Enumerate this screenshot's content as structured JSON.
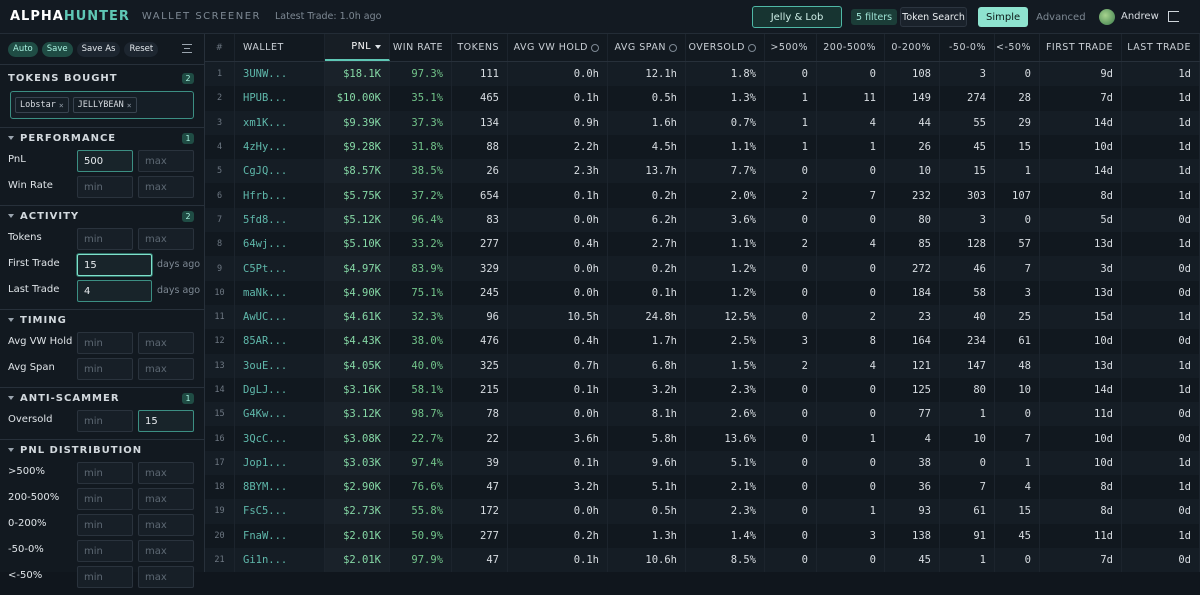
{
  "header": {
    "brand": [
      "ALPHA",
      "HUNTER"
    ],
    "subtitle": "WALLET SCREENER",
    "latest_trade": "Latest Trade: 1.0h ago",
    "preset": "Jelly & Lob",
    "filters": "5 filters",
    "token_search": "Token Search",
    "modes": [
      {
        "label": "Simple",
        "active": true
      },
      {
        "label": "Advanced"
      }
    ],
    "user": "Andrew"
  },
  "sidebar": {
    "actions": [
      {
        "label": "Auto",
        "active": true
      },
      {
        "label": "Save",
        "active": true
      },
      {
        "label": "Save As"
      },
      {
        "label": "Reset"
      }
    ],
    "sections": [
      {
        "title": "TOKENS BOUGHT",
        "count": "2",
        "chips": [
          "Lobstar",
          "JELLYBEAN"
        ]
      },
      {
        "title": "PERFORMANCE",
        "count": "1",
        "fields": [
          {
            "label": "PnL",
            "inputs": [
              {
                "text": "500",
                "filled": true
              },
              {
                "text": "max"
              }
            ]
          },
          {
            "label": "Win Rate",
            "inputs": [
              {
                "text": "min"
              },
              {
                "text": "max"
              }
            ]
          }
        ]
      },
      {
        "title": "ACTIVITY",
        "count": "2",
        "fields": [
          {
            "label": "Tokens",
            "inputs": [
              {
                "text": "min"
              },
              {
                "text": "max"
              }
            ]
          },
          {
            "label": "First Trade",
            "inputs": [
              {
                "text": "15",
                "filled": true,
                "focused": true
              }
            ],
            "suffix": "days ago"
          },
          {
            "label": "Last Trade",
            "inputs": [
              {
                "text": "4",
                "filled": true
              }
            ],
            "suffix": "days ago"
          }
        ]
      },
      {
        "title": "TIMING",
        "fields": [
          {
            "label": "Avg VW Hold",
            "inputs": [
              {
                "text": "min"
              },
              {
                "text": "max"
              }
            ]
          },
          {
            "label": "Avg Span",
            "inputs": [
              {
                "text": "min"
              },
              {
                "text": "max"
              }
            ]
          }
        ]
      },
      {
        "title": "ANTI-SCAMMER",
        "count": "1",
        "fields": [
          {
            "label": "Oversold",
            "inputs": [
              {
                "text": "min"
              },
              {
                "text": "15",
                "filled": true
              }
            ]
          }
        ]
      },
      {
        "title": "PNL DISTRIBUTION",
        "fields": [
          {
            "label": ">500%",
            "inputs": [
              {
                "text": "min"
              },
              {
                "text": "max"
              }
            ]
          },
          {
            "label": "200-500%",
            "inputs": [
              {
                "text": "min"
              },
              {
                "text": "max"
              }
            ]
          },
          {
            "label": "0-200%",
            "inputs": [
              {
                "text": "min"
              },
              {
                "text": "max"
              }
            ]
          },
          {
            "label": "-50-0%",
            "inputs": [
              {
                "text": "min"
              },
              {
                "text": "max"
              }
            ]
          },
          {
            "label": "<-50%",
            "inputs": [
              {
                "text": "min"
              },
              {
                "text": "max"
              }
            ]
          }
        ]
      }
    ]
  },
  "table": {
    "columns": [
      {
        "label": "#"
      },
      {
        "label": "WALLET",
        "color": "#5fb8ab"
      },
      {
        "label": "PNL",
        "sorted": "desc",
        "color": "#86d9a6"
      },
      {
        "label": "WIN RATE",
        "color": "#72c48a"
      },
      {
        "label": "TOKENS"
      },
      {
        "label": "AVG VW HOLD",
        "info": true
      },
      {
        "label": "AVG SPAN",
        "info": true
      },
      {
        "label": "OVERSOLD",
        "info": true
      },
      {
        "label": ">500%"
      },
      {
        "label": "200-500%"
      },
      {
        "label": "0-200%"
      },
      {
        "label": "-50-0%"
      },
      {
        "label": "<-50%"
      },
      {
        "label": "FIRST TRADE"
      },
      {
        "label": "LAST TRADE"
      }
    ],
    "rows": [
      [
        "1",
        "3UNW...",
        "$18.1K",
        "97.3%",
        "111",
        "0.0h",
        "12.1h",
        "1.8%",
        "0",
        "0",
        "108",
        "3",
        "0",
        "9d",
        "1d"
      ],
      [
        "2",
        "HPUB...",
        "$10.00K",
        "35.1%",
        "465",
        "0.1h",
        "0.5h",
        "1.3%",
        "1",
        "11",
        "149",
        "274",
        "28",
        "7d",
        "1d"
      ],
      [
        "3",
        "xm1K...",
        "$9.39K",
        "37.3%",
        "134",
        "0.9h",
        "1.6h",
        "0.7%",
        "1",
        "4",
        "44",
        "55",
        "29",
        "14d",
        "1d"
      ],
      [
        "4",
        "4zHy...",
        "$9.28K",
        "31.8%",
        "88",
        "2.2h",
        "4.5h",
        "1.1%",
        "1",
        "1",
        "26",
        "45",
        "15",
        "10d",
        "1d"
      ],
      [
        "5",
        "CgJQ...",
        "$8.57K",
        "38.5%",
        "26",
        "2.3h",
        "13.7h",
        "7.7%",
        "0",
        "0",
        "10",
        "15",
        "1",
        "14d",
        "1d"
      ],
      [
        "6",
        "Hfrb...",
        "$5.75K",
        "37.2%",
        "654",
        "0.1h",
        "0.2h",
        "2.0%",
        "2",
        "7",
        "232",
        "303",
        "107",
        "8d",
        "1d"
      ],
      [
        "7",
        "5fd8...",
        "$5.12K",
        "96.4%",
        "83",
        "0.0h",
        "6.2h",
        "3.6%",
        "0",
        "0",
        "80",
        "3",
        "0",
        "5d",
        "0d"
      ],
      [
        "8",
        "64wj...",
        "$5.10K",
        "33.2%",
        "277",
        "0.4h",
        "2.7h",
        "1.1%",
        "2",
        "4",
        "85",
        "128",
        "57",
        "13d",
        "1d"
      ],
      [
        "9",
        "C5Pt...",
        "$4.97K",
        "83.9%",
        "329",
        "0.0h",
        "0.2h",
        "1.2%",
        "0",
        "0",
        "272",
        "46",
        "7",
        "3d",
        "0d"
      ],
      [
        "10",
        "maNk...",
        "$4.90K",
        "75.1%",
        "245",
        "0.0h",
        "0.1h",
        "1.2%",
        "0",
        "0",
        "184",
        "58",
        "3",
        "13d",
        "0d"
      ],
      [
        "11",
        "AwUC...",
        "$4.61K",
        "32.3%",
        "96",
        "10.5h",
        "24.8h",
        "12.5%",
        "0",
        "2",
        "23",
        "40",
        "25",
        "15d",
        "1d"
      ],
      [
        "12",
        "85AR...",
        "$4.43K",
        "38.0%",
        "476",
        "0.4h",
        "1.7h",
        "2.5%",
        "3",
        "8",
        "164",
        "234",
        "61",
        "10d",
        "0d"
      ],
      [
        "13",
        "3ouE...",
        "$4.05K",
        "40.0%",
        "325",
        "0.7h",
        "6.8h",
        "1.5%",
        "2",
        "4",
        "121",
        "147",
        "48",
        "13d",
        "1d"
      ],
      [
        "14",
        "DgLJ...",
        "$3.16K",
        "58.1%",
        "215",
        "0.1h",
        "3.2h",
        "2.3%",
        "0",
        "0",
        "125",
        "80",
        "10",
        "14d",
        "1d"
      ],
      [
        "15",
        "G4Kw...",
        "$3.12K",
        "98.7%",
        "78",
        "0.0h",
        "8.1h",
        "2.6%",
        "0",
        "0",
        "77",
        "1",
        "0",
        "11d",
        "0d"
      ],
      [
        "16",
        "3QcC...",
        "$3.08K",
        "22.7%",
        "22",
        "3.6h",
        "5.8h",
        "13.6%",
        "0",
        "1",
        "4",
        "10",
        "7",
        "10d",
        "0d"
      ],
      [
        "17",
        "Jop1...",
        "$3.03K",
        "97.4%",
        "39",
        "0.1h",
        "9.6h",
        "5.1%",
        "0",
        "0",
        "38",
        "0",
        "1",
        "10d",
        "1d"
      ],
      [
        "18",
        "8BYM...",
        "$2.90K",
        "76.6%",
        "47",
        "3.2h",
        "5.1h",
        "2.1%",
        "0",
        "0",
        "36",
        "7",
        "4",
        "8d",
        "1d"
      ],
      [
        "19",
        "FsC5...",
        "$2.73K",
        "55.8%",
        "172",
        "0.0h",
        "0.5h",
        "2.3%",
        "0",
        "1",
        "93",
        "61",
        "15",
        "8d",
        "0d"
      ],
      [
        "20",
        "FnaW...",
        "$2.01K",
        "50.9%",
        "277",
        "0.2h",
        "1.3h",
        "1.4%",
        "0",
        "3",
        "138",
        "91",
        "45",
        "11d",
        "1d"
      ],
      [
        "21",
        "Gi1n...",
        "$2.01K",
        "97.9%",
        "47",
        "0.1h",
        "10.6h",
        "8.5%",
        "0",
        "0",
        "45",
        "1",
        "0",
        "7d",
        "0d"
      ]
    ]
  }
}
